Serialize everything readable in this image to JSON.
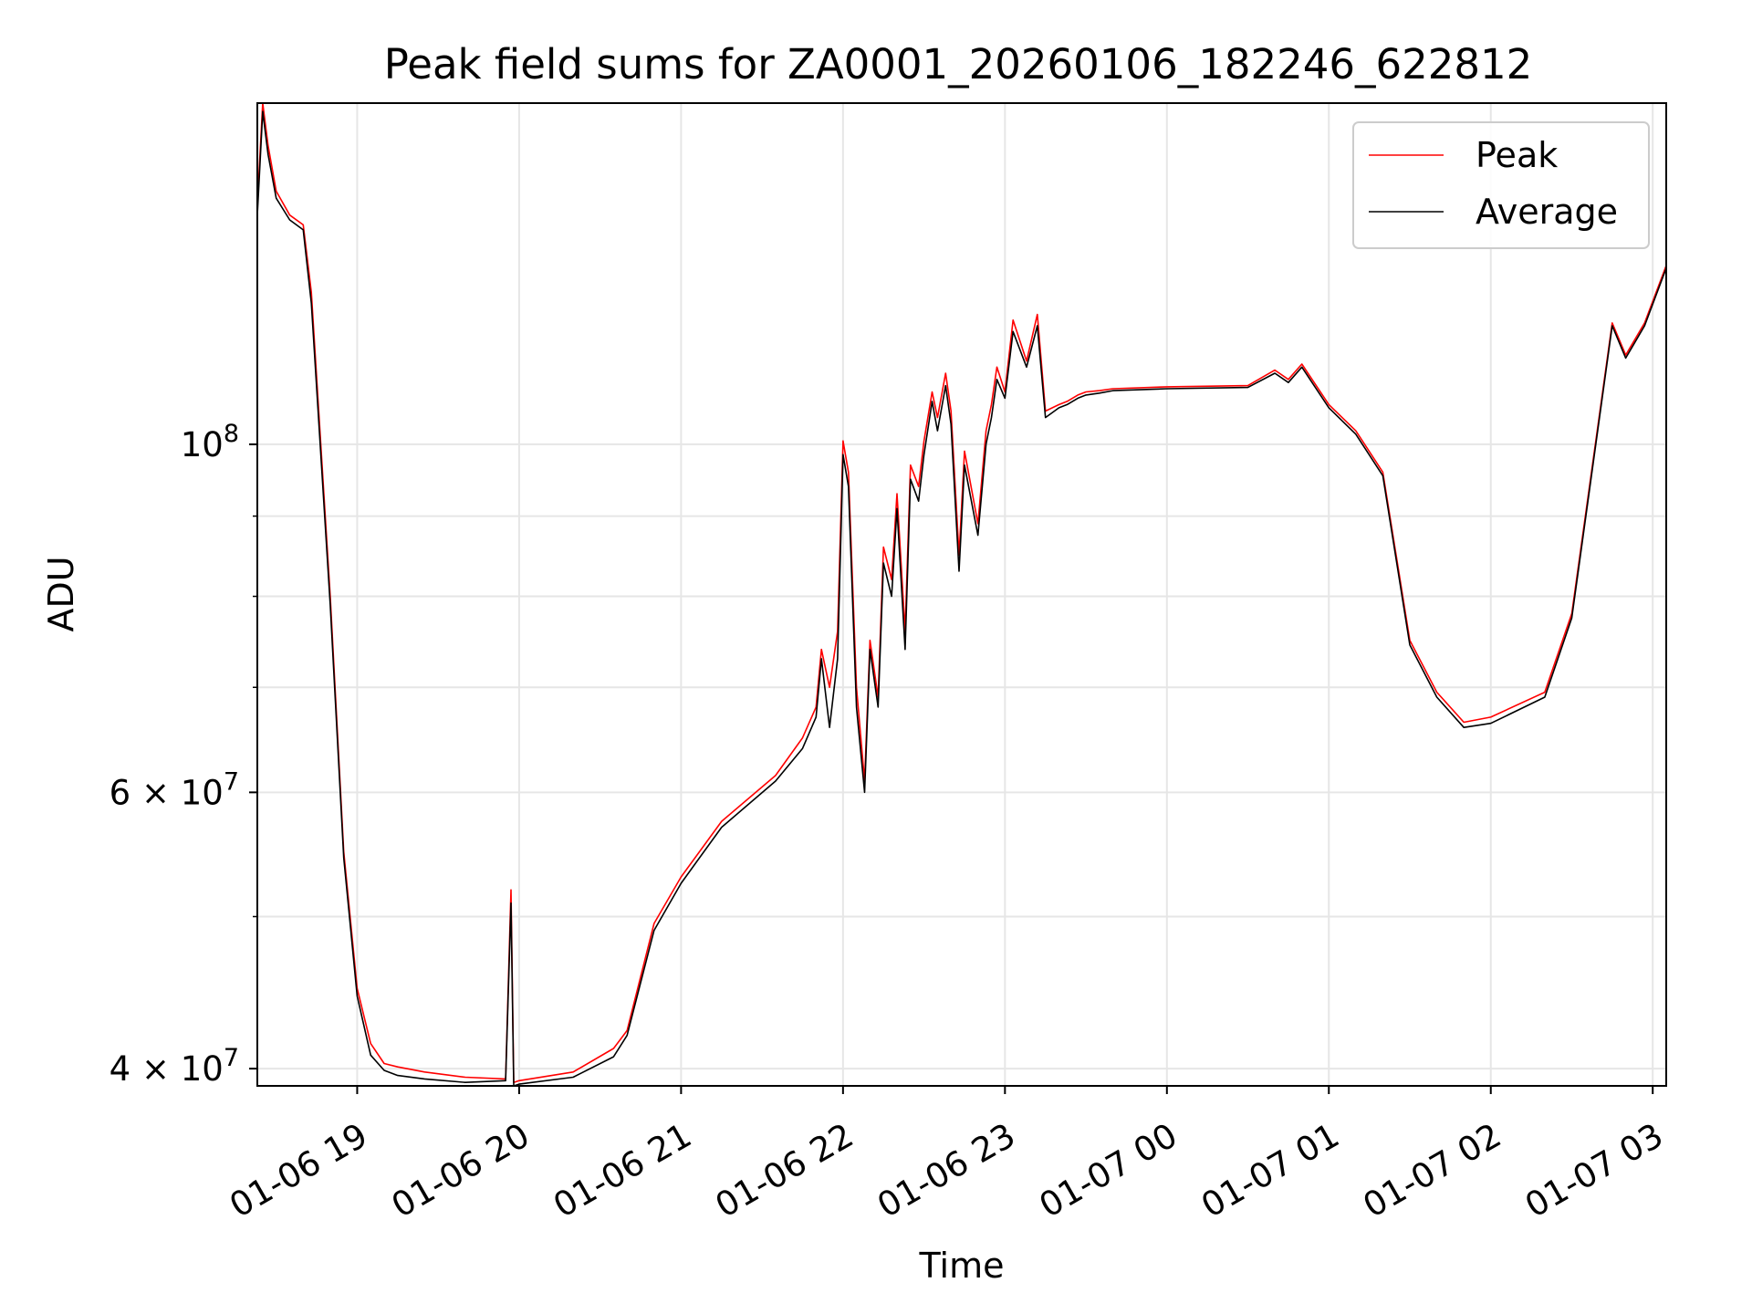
{
  "chart_data": {
    "type": "line",
    "title": "Peak field sums for ZA0001_20260106_182246_622812",
    "xlabel": "Time",
    "ylabel": "ADU",
    "x_range": [
      "2026-01-06 18:23",
      "2026-01-07 03:05"
    ],
    "ylim": [
      39000000,
      165000000
    ],
    "yscale": "log",
    "grid": true,
    "legend_position": "top-right",
    "x_ticks": [
      "01-06 19",
      "01-06 20",
      "01-06 21",
      "01-06 22",
      "01-06 23",
      "01-07 00",
      "01-07 01",
      "01-07 02",
      "01-07 03"
    ],
    "y_ticks_major": [
      {
        "value": 40000000,
        "label": "4 × 10^7"
      },
      {
        "value": 60000000,
        "label": "6 × 10^7"
      },
      {
        "value": 100000000,
        "label": "10^8"
      }
    ],
    "y_ticks_minor": [
      50000000,
      70000000,
      80000000,
      90000000
    ],
    "x": [
      "2026-01-06 18:23",
      "2026-01-06 18:25",
      "2026-01-06 18:27",
      "2026-01-06 18:30",
      "2026-01-06 18:35",
      "2026-01-06 18:40",
      "2026-01-06 18:43",
      "2026-01-06 18:50",
      "2026-01-06 18:55",
      "2026-01-06 19:00",
      "2026-01-06 19:05",
      "2026-01-06 19:10",
      "2026-01-06 19:15",
      "2026-01-06 19:25",
      "2026-01-06 19:40",
      "2026-01-06 19:55",
      "2026-01-06 19:57",
      "2026-01-06 19:58",
      "2026-01-06 20:00",
      "2026-01-06 20:20",
      "2026-01-06 20:35",
      "2026-01-06 20:40",
      "2026-01-06 20:50",
      "2026-01-06 21:00",
      "2026-01-06 21:15",
      "2026-01-06 21:35",
      "2026-01-06 21:45",
      "2026-01-06 21:50",
      "2026-01-06 21:52",
      "2026-01-06 21:55",
      "2026-01-06 21:58",
      "2026-01-06 22:00",
      "2026-01-06 22:02",
      "2026-01-06 22:05",
      "2026-01-06 22:08",
      "2026-01-06 22:10",
      "2026-01-06 22:13",
      "2026-01-06 22:15",
      "2026-01-06 22:18",
      "2026-01-06 22:20",
      "2026-01-06 22:23",
      "2026-01-06 22:25",
      "2026-01-06 22:28",
      "2026-01-06 22:30",
      "2026-01-06 22:33",
      "2026-01-06 22:35",
      "2026-01-06 22:38",
      "2026-01-06 22:40",
      "2026-01-06 22:43",
      "2026-01-06 22:45",
      "2026-01-06 22:50",
      "2026-01-06 22:53",
      "2026-01-06 22:55",
      "2026-01-06 22:57",
      "2026-01-06 23:00",
      "2026-01-06 23:03",
      "2026-01-06 23:08",
      "2026-01-06 23:12",
      "2026-01-06 23:15",
      "2026-01-06 23:20",
      "2026-01-06 23:23",
      "2026-01-06 23:25",
      "2026-01-06 23:27",
      "2026-01-06 23:30",
      "2026-01-06 23:35",
      "2026-01-06 23:40",
      "2026-01-07 00:00",
      "2026-01-07 00:30",
      "2026-01-07 00:40",
      "2026-01-07 00:45",
      "2026-01-07 00:50",
      "2026-01-07 01:00",
      "2026-01-07 01:10",
      "2026-01-07 01:20",
      "2026-01-07 01:30",
      "2026-01-07 01:40",
      "2026-01-07 01:50",
      "2026-01-07 02:00",
      "2026-01-07 02:20",
      "2026-01-07 02:30",
      "2026-01-07 02:45",
      "2026-01-07 02:50",
      "2026-01-07 02:57",
      "2026-01-07 03:05"
    ],
    "series": [
      {
        "name": "Peak",
        "color": "#ff0000",
        "values": [
          142000000,
          165000000,
          155000000,
          145000000,
          140000000,
          138000000,
          125000000,
          80000000,
          55000000,
          45000000,
          41500000,
          40300000,
          40100000,
          39800000,
          39500000,
          39400000,
          52000000,
          39200000,
          39300000,
          39800000,
          41200000,
          42300000,
          49500000,
          53000000,
          57500000,
          61500000,
          65000000,
          68000000,
          74000000,
          70000000,
          76000000,
          100500000,
          96000000,
          70000000,
          61000000,
          75000000,
          69000000,
          86000000,
          82000000,
          93000000,
          76000000,
          97000000,
          94000000,
          100500000,
          108000000,
          104000000,
          111000000,
          105000000,
          85000000,
          99000000,
          89000000,
          102000000,
          106000000,
          112000000,
          108000000,
          120000000,
          113000000,
          121000000,
          105000000,
          106000000,
          106500000,
          107000000,
          107500000,
          108000000,
          108200000,
          108500000,
          108800000,
          109000000,
          111500000,
          110000000,
          112500000,
          106000000,
          102000000,
          96000000,
          75000000,
          69500000,
          66500000,
          67000000,
          69500000,
          78000000,
          119500000,
          114000000,
          119500000,
          130000000
        ]
      },
      {
        "name": "Average",
        "color": "#000000",
        "values": [
          140000000,
          163000000,
          153000000,
          143500000,
          139000000,
          137000000,
          123000000,
          79000000,
          54500000,
          44500000,
          40800000,
          39900000,
          39600000,
          39400000,
          39200000,
          39300000,
          51000000,
          39000000,
          39100000,
          39500000,
          40700000,
          42000000,
          49000000,
          52500000,
          57000000,
          61000000,
          64000000,
          67000000,
          73000000,
          66000000,
          73000000,
          98500000,
          94000000,
          68000000,
          60000000,
          74000000,
          68000000,
          84000000,
          80000000,
          91000000,
          74000000,
          95000000,
          92000000,
          98500000,
          106500000,
          102000000,
          109000000,
          103000000,
          83000000,
          97000000,
          87500000,
          100000000,
          104000000,
          110000000,
          107000000,
          118000000,
          112000000,
          119000000,
          104000000,
          105500000,
          106000000,
          106500000,
          107000000,
          107500000,
          107800000,
          108200000,
          108500000,
          108700000,
          111000000,
          109500000,
          112000000,
          105500000,
          101500000,
          95500000,
          74500000,
          69000000,
          66000000,
          66400000,
          69000000,
          77500000,
          119000000,
          113500000,
          119000000,
          129500000
        ]
      }
    ]
  }
}
